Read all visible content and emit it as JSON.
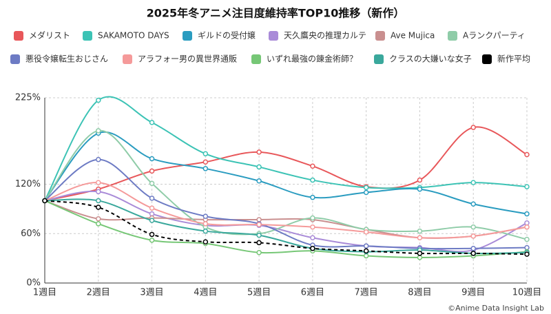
{
  "chart_data": {
    "type": "line",
    "title": "2025年冬アニメ注目度維持率TOP10推移（新作）",
    "credit": "©Anime Data Insight Lab",
    "categories": [
      "1週目",
      "2週目",
      "3週目",
      "4週目",
      "5週目",
      "6週目",
      "7週目",
      "8週目",
      "9週目",
      "10週目"
    ],
    "ylim": [
      0,
      225
    ],
    "yticks": [
      {
        "value": 0,
        "label": "0%"
      },
      {
        "value": 60,
        "label": "60%"
      },
      {
        "value": 120,
        "label": "120%"
      },
      {
        "value": 225,
        "label": "225%"
      }
    ],
    "grid": true,
    "legend": "top",
    "series": [
      {
        "name": "メダリスト",
        "color": "#e8575a",
        "values": [
          100,
          114,
          136,
          147,
          159,
          142,
          117,
          125,
          189,
          156
        ]
      },
      {
        "name": "SAKAMOTO DAYS",
        "color": "#3cc3b5",
        "values": [
          100,
          222,
          195,
          157,
          141,
          125,
          116,
          116,
          122,
          117
        ]
      },
      {
        "name": "ギルドの受付嬢",
        "color": "#2a9cc0",
        "values": [
          100,
          182,
          151,
          139,
          124,
          104,
          110,
          114,
          96,
          84
        ]
      },
      {
        "name": "天久鷹央の推理カルテ",
        "color": "#a98bd8",
        "values": [
          100,
          111,
          84,
          70,
          70,
          55,
          45,
          43,
          40,
          73
        ]
      },
      {
        "name": "Ave Mujica",
        "color": "#c98f8f",
        "values": [
          100,
          78,
          79,
          77,
          77,
          77,
          65,
          55,
          57,
          68
        ]
      },
      {
        "name": "Aランクパーティ",
        "color": "#8fcca8",
        "values": [
          100,
          185,
          121,
          68,
          60,
          79,
          65,
          63,
          68,
          53
        ]
      },
      {
        "name": "悪役令嬢転生おじさん",
        "color": "#6d7bc4",
        "values": [
          100,
          150,
          103,
          81,
          72,
          46,
          45,
          42,
          42,
          43
        ]
      },
      {
        "name": "アラフォー男の異世界通販",
        "color": "#f59a9a",
        "values": [
          100,
          122,
          91,
          72,
          71,
          68,
          62,
          55,
          57,
          68
        ]
      },
      {
        "name": "いずれ最強の錬金術師？",
        "color": "#76c776",
        "values": [
          100,
          72,
          52,
          48,
          37,
          39,
          33,
          31,
          33,
          38
        ]
      },
      {
        "name": "クラスの大嫌いな女子",
        "color": "#3aa89c",
        "values": [
          100,
          100,
          76,
          63,
          58,
          42,
          38,
          40,
          36,
          37
        ]
      },
      {
        "name": "新作平均",
        "color": "#000000",
        "dashed": true,
        "values": [
          100,
          92,
          59,
          50,
          49,
          42,
          39,
          36,
          36,
          35
        ]
      }
    ]
  }
}
